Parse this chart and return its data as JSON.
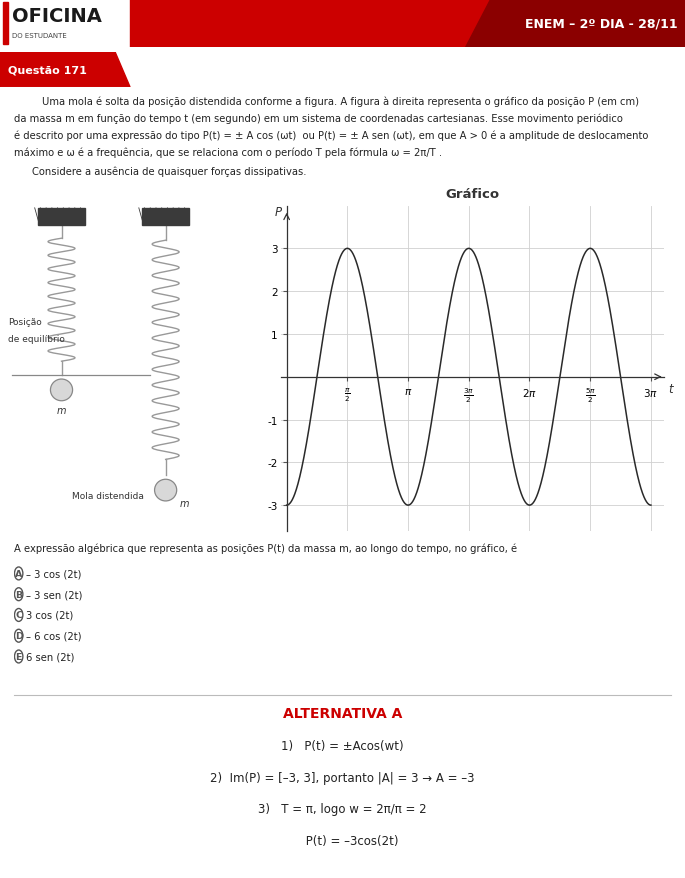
{
  "header_red": "#cc0000",
  "header_dark": "#8b0000",
  "header_text": "ENEM – 2º DIA - 28/11",
  "logo_text": "OFICINA",
  "logo_sub": "DO ESTUDANTE",
  "question_label": "Questão 171",
  "body_line1": "Uma mola é solta da posição distendida conforme a figura. A figura à direita representa o gráfico da posição P (em cm)",
  "body_line2": "da massa m em função do tempo t (em segundo) em um sistema de coordenadas cartesianas. Esse movimento periódico",
  "body_line3": "é descrito por uma expressão do tipo P(t) = ± A cos (ωt)  ou P(t) = ± A sen (ωt), em que A > 0 é a amplitude de deslocamento",
  "body_line4": "máximo e ω é a frequência, que se relaciona com o período T pela fórmula ω = 2π/T .",
  "consider_text": "Considere a ausência de quaisquer forças dissipativas.",
  "graph_title": "Gráfico",
  "graph_xlabel": "t",
  "graph_ylabel": "P",
  "graph_amplitude": 3,
  "graph_omega": 2,
  "question_text": "A expressão algébrica que representa as posições P(t) da massa m, ao longo do tempo, no gráfico, é",
  "options": [
    "– 3 cos (2t)",
    "– 3 sen (2t)",
    "3 cos (2t)",
    "– 6 cos (2t)",
    "6 sen (2t)"
  ],
  "option_letters": [
    "A",
    "B",
    "C",
    "D",
    "E"
  ],
  "alt_title": "ALTERNATIVA A",
  "alt_line1": "1)   P(t) = ±Acos(wt)",
  "alt_line2": "2)  Im(P) = [–3, 3], portanto |A| = 3 → A = –3",
  "alt_line3": "3)   T = π, logo w = 2π/π = 2",
  "alt_line4": "     P(t) = –3cos(2t)",
  "red_color": "#cc0000",
  "text_color": "#222222",
  "gray_color": "#555555"
}
